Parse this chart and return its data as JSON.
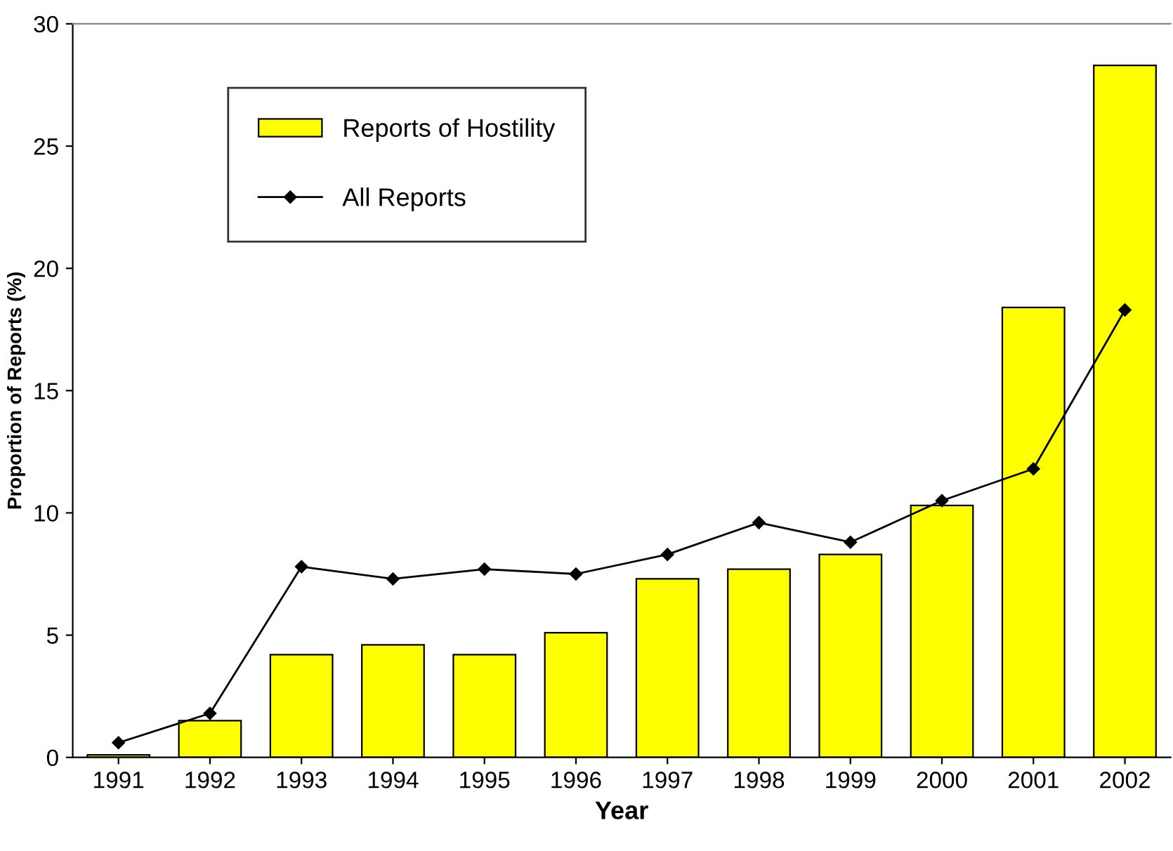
{
  "chart_data": {
    "type": "bar",
    "xlabel": "Year",
    "ylabel": "Proportion of Reports (%)",
    "categories": [
      "1991",
      "1992",
      "1993",
      "1994",
      "1995",
      "1996",
      "1997",
      "1998",
      "1999",
      "2000",
      "2001",
      "2002"
    ],
    "series": [
      {
        "name": "Reports of Hostility",
        "color": "#ffff00",
        "values": [
          0.1,
          1.5,
          4.2,
          4.6,
          4.2,
          5.1,
          7.3,
          7.7,
          8.3,
          10.3,
          18.4,
          28.3
        ]
      },
      {
        "name": "All Reports",
        "type": "line",
        "color": "#000000",
        "marker": "diamond",
        "values": [
          0.6,
          1.8,
          7.8,
          7.3,
          7.7,
          7.5,
          8.3,
          9.6,
          8.8,
          10.5,
          11.8,
          18.3
        ]
      }
    ],
    "ylim": [
      0,
      30
    ],
    "yticks": [
      0,
      5,
      10,
      15,
      20,
      25,
      30
    ],
    "grid": false,
    "legend": "top left"
  }
}
